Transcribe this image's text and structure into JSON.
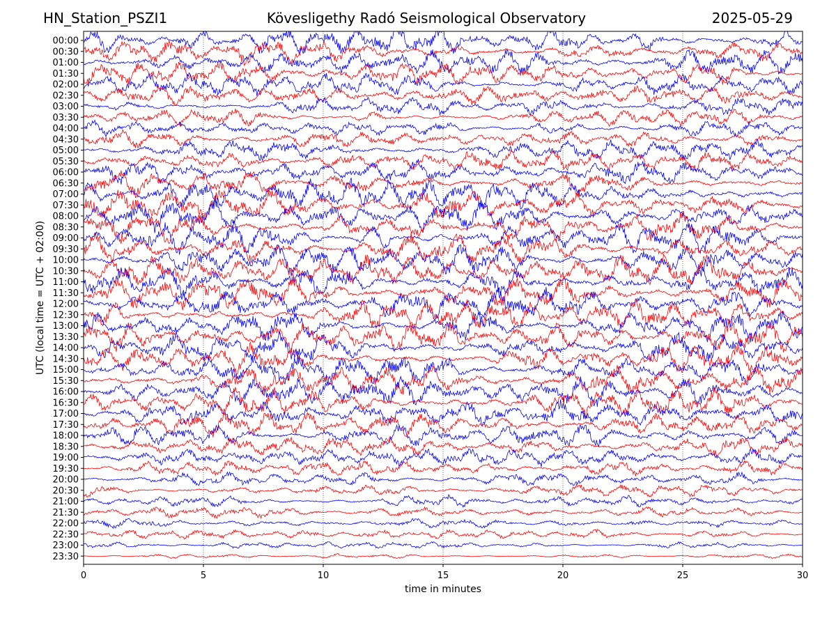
{
  "header": {
    "station": "HN_Station_PSZI1",
    "observatory": "Kövesligethy Radó Seismological Observatory",
    "date": "2025-05-29"
  },
  "chart_data": {
    "type": "line",
    "title": "Kövesligethy Radó Seismological Observatory",
    "xlabel": "time in minutes",
    "ylabel": "UTC (local time = UTC + 02:00)",
    "xlim": [
      0,
      30
    ],
    "x_ticks": [
      0,
      5,
      10,
      15,
      20,
      25,
      30
    ],
    "grid": "vertical dotted at x ticks",
    "trace_colors": [
      "#0000ff",
      "#ff0000"
    ],
    "rows": [
      "00:00",
      "00:30",
      "01:00",
      "01:30",
      "02:00",
      "02:30",
      "03:00",
      "03:30",
      "04:00",
      "04:30",
      "05:00",
      "05:30",
      "06:00",
      "06:30",
      "07:00",
      "07:30",
      "08:00",
      "08:30",
      "09:00",
      "09:30",
      "10:00",
      "10:30",
      "11:00",
      "11:30",
      "12:00",
      "12:30",
      "13:00",
      "13:30",
      "14:00",
      "14:30",
      "15:00",
      "15:30",
      "16:00",
      "16:30",
      "17:00",
      "17:30",
      "18:00",
      "18:30",
      "19:00",
      "19:30",
      "20:00",
      "20:30",
      "21:00",
      "21:30",
      "22:00",
      "22:30",
      "23:00",
      "23:30"
    ],
    "relative_amplitude": [
      0.9,
      0.85,
      0.8,
      0.75,
      0.7,
      0.65,
      0.6,
      0.55,
      0.55,
      0.6,
      0.65,
      0.7,
      0.8,
      0.85,
      0.95,
      1.0,
      1.0,
      1.0,
      1.0,
      1.0,
      1.0,
      1.0,
      1.0,
      1.0,
      1.0,
      1.0,
      1.0,
      1.0,
      1.0,
      1.0,
      0.95,
      0.95,
      0.95,
      0.9,
      0.85,
      0.8,
      0.7,
      0.6,
      0.55,
      0.5,
      0.45,
      0.42,
      0.4,
      0.38,
      0.33,
      0.3,
      0.22,
      0.15
    ]
  }
}
